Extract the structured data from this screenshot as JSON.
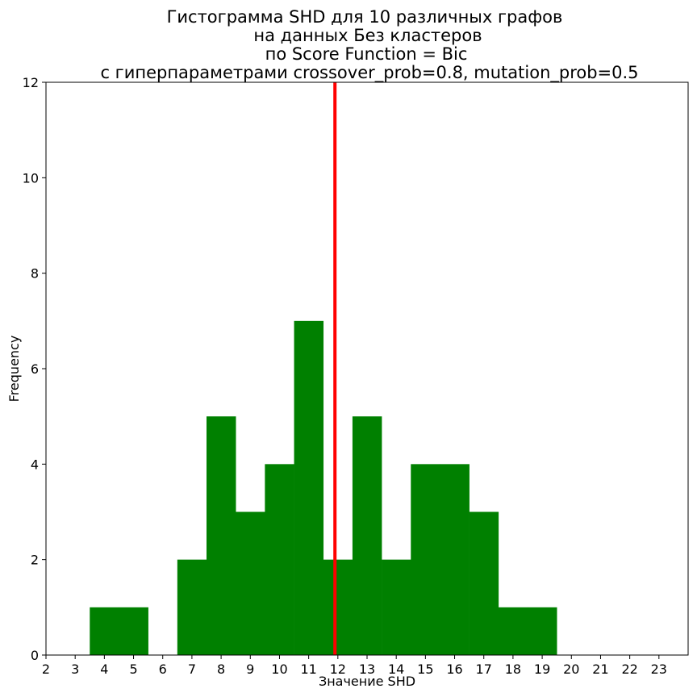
{
  "chart_data": {
    "type": "bar",
    "title": [
      "Гистограмма SHD для 10 различных графов",
      "на данных Без кластеров",
      "по Score Function = Bic",
      "с гиперпараметрами crossover_prob=0.8, mutation_prob=0.5"
    ],
    "xlabel": "Значение SHD",
    "ylabel": "Frequency",
    "xlim": [
      2,
      24
    ],
    "ylim": [
      0,
      12
    ],
    "xticks": [
      2,
      3,
      4,
      5,
      6,
      7,
      8,
      9,
      10,
      11,
      12,
      13,
      14,
      15,
      16,
      17,
      18,
      19,
      20,
      21,
      22,
      23
    ],
    "yticks": [
      0,
      2,
      4,
      6,
      8,
      10,
      12
    ],
    "bar_width": 1,
    "bar_color": "#008000",
    "bins": [
      {
        "x": 4,
        "value": 1
      },
      {
        "x": 5,
        "value": 1
      },
      {
        "x": 6,
        "value": 0
      },
      {
        "x": 7,
        "value": 2
      },
      {
        "x": 8,
        "value": 5
      },
      {
        "x": 9,
        "value": 3
      },
      {
        "x": 10,
        "value": 4
      },
      {
        "x": 11,
        "value": 7
      },
      {
        "x": 12,
        "value": 2
      },
      {
        "x": 13,
        "value": 5
      },
      {
        "x": 14,
        "value": 2
      },
      {
        "x": 15,
        "value": 4
      },
      {
        "x": 16,
        "value": 4
      },
      {
        "x": 17,
        "value": 3
      },
      {
        "x": 18,
        "value": 1
      },
      {
        "x": 19,
        "value": 1
      }
    ],
    "vline": {
      "x": 11.9,
      "color": "#ff0000"
    },
    "grid": false,
    "legend": "none"
  }
}
